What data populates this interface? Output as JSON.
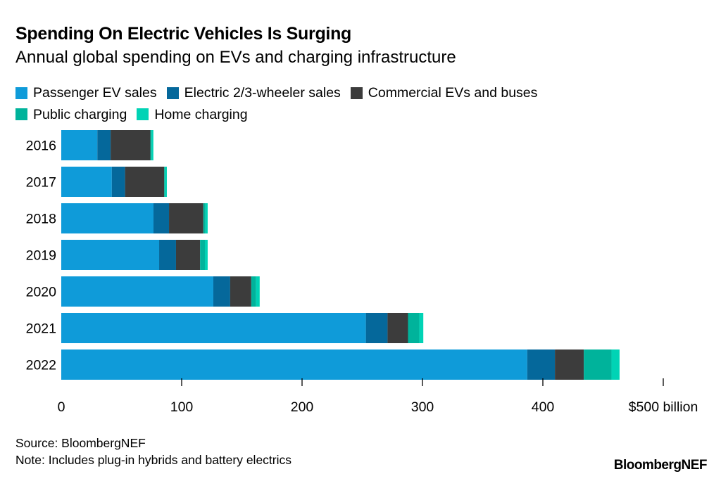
{
  "chart_data": {
    "type": "bar",
    "orientation": "horizontal",
    "stacked": true,
    "title": "Spending On Electric Vehicles Is Surging",
    "subtitle": "Annual global spending on EVs and charging infrastructure",
    "categories": [
      "2016",
      "2017",
      "2018",
      "2019",
      "2020",
      "2021",
      "2022"
    ],
    "series": [
      {
        "name": "Passenger EV sales",
        "color": "#0f9bd9",
        "values": [
          30,
          42,
          76.6,
          81.3,
          126.3,
          253,
          387
        ]
      },
      {
        "name": "Electric 2/3-wheeler sales",
        "color": "#05689b",
        "values": [
          11,
          11,
          12.9,
          14,
          14,
          18,
          23
        ]
      },
      {
        "name": "Commercial EVs and buses",
        "color": "#3c3c3c",
        "values": [
          33,
          32.5,
          28.5,
          20,
          17.5,
          17,
          24
        ]
      },
      {
        "name": "Public charging",
        "color": "#00b39b",
        "values": [
          1,
          0.7,
          1.8,
          4,
          4,
          9.4,
          23
        ]
      },
      {
        "name": "Home charging",
        "color": "#00d3b5",
        "values": [
          1.5,
          1.5,
          1.8,
          2.3,
          3,
          3.3,
          6.7
        ]
      }
    ],
    "xlim": [
      0,
      500
    ],
    "xticks": [
      0,
      100,
      200,
      300,
      400,
      500
    ],
    "xtick_labels": [
      "0",
      "100",
      "200",
      "300",
      "400",
      "$500 billion"
    ],
    "grid": false,
    "legend_placement": "top"
  },
  "footer": {
    "source": "Source: BloombergNEF",
    "note": "Note: Includes plug-in hybrids and battery electrics",
    "logo": "BloombergNEF"
  }
}
